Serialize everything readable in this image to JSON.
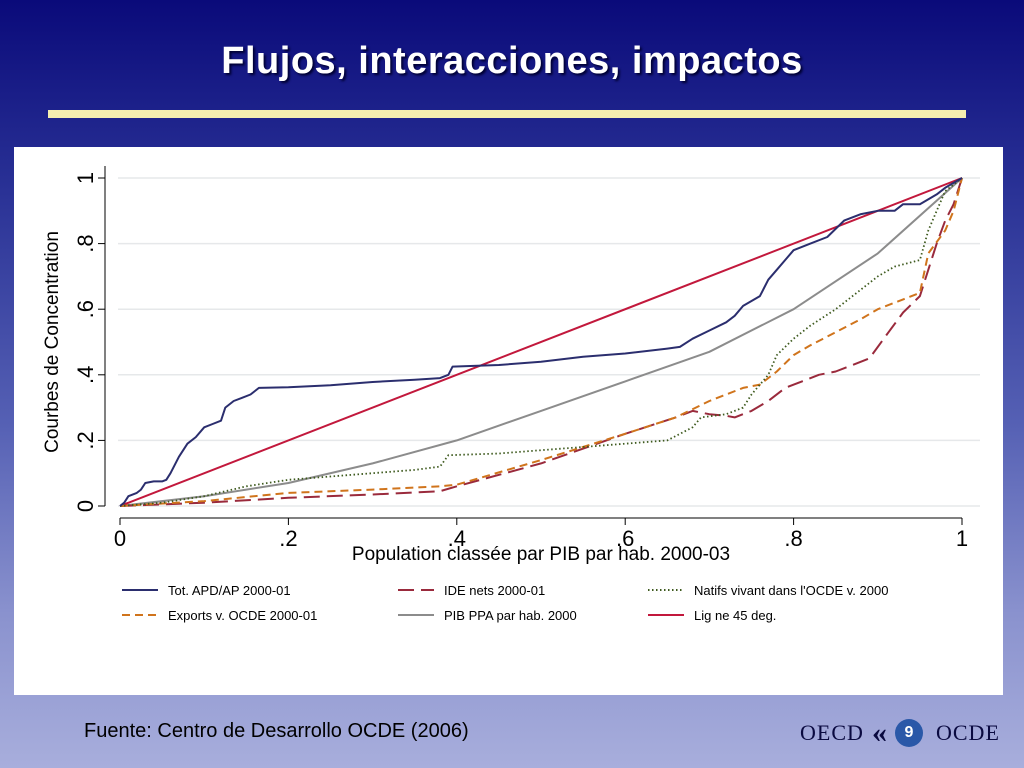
{
  "slide": {
    "title": "Flujos, interacciones, impactos",
    "footer": "Fuente: Centro de Desarrollo OCDE (2006)",
    "logo_left": "OECD",
    "logo_right": "OCDE",
    "page_number": "9"
  },
  "chart_data": {
    "type": "line",
    "title": "",
    "xlabel": "Population classée par PIB par hab. 2000-03",
    "ylabel": "Courbes de Concentration",
    "xlim": [
      0,
      1
    ],
    "ylim": [
      0,
      1
    ],
    "x_ticks": [
      0,
      0.2,
      0.4,
      0.6,
      0.8,
      1
    ],
    "x_tick_labels": [
      "0",
      ".2",
      ".4",
      ".6",
      ".8",
      "1"
    ],
    "y_ticks": [
      0,
      0.2,
      0.4,
      0.6,
      0.8,
      1
    ],
    "y_tick_labels": [
      "0",
      ".2",
      ".4",
      ".6",
      ".8",
      "1"
    ],
    "grid": true,
    "legend_position": "bottom",
    "series": [
      {
        "name": "Tot. APD/AP 2000-01",
        "color": "#2b2e6e",
        "style": "solid",
        "points": [
          [
            0,
            0
          ],
          [
            0.005,
            0.01
          ],
          [
            0.01,
            0.03
          ],
          [
            0.02,
            0.04
          ],
          [
            0.025,
            0.05
          ],
          [
            0.03,
            0.07
          ],
          [
            0.04,
            0.075
          ],
          [
            0.05,
            0.075
          ],
          [
            0.055,
            0.08
          ],
          [
            0.06,
            0.1
          ],
          [
            0.07,
            0.15
          ],
          [
            0.08,
            0.19
          ],
          [
            0.09,
            0.21
          ],
          [
            0.1,
            0.24
          ],
          [
            0.11,
            0.25
          ],
          [
            0.12,
            0.26
          ],
          [
            0.125,
            0.3
          ],
          [
            0.135,
            0.32
          ],
          [
            0.145,
            0.33
          ],
          [
            0.155,
            0.34
          ],
          [
            0.165,
            0.36
          ],
          [
            0.2,
            0.362
          ],
          [
            0.25,
            0.368
          ],
          [
            0.3,
            0.378
          ],
          [
            0.35,
            0.385
          ],
          [
            0.38,
            0.39
          ],
          [
            0.39,
            0.4
          ],
          [
            0.395,
            0.425
          ],
          [
            0.45,
            0.43
          ],
          [
            0.5,
            0.44
          ],
          [
            0.55,
            0.455
          ],
          [
            0.6,
            0.465
          ],
          [
            0.65,
            0.48
          ],
          [
            0.665,
            0.485
          ],
          [
            0.68,
            0.51
          ],
          [
            0.7,
            0.535
          ],
          [
            0.72,
            0.56
          ],
          [
            0.73,
            0.58
          ],
          [
            0.74,
            0.61
          ],
          [
            0.76,
            0.64
          ],
          [
            0.77,
            0.69
          ],
          [
            0.78,
            0.72
          ],
          [
            0.79,
            0.75
          ],
          [
            0.8,
            0.78
          ],
          [
            0.82,
            0.8
          ],
          [
            0.84,
            0.82
          ],
          [
            0.86,
            0.87
          ],
          [
            0.88,
            0.89
          ],
          [
            0.9,
            0.9
          ],
          [
            0.92,
            0.9
          ],
          [
            0.93,
            0.92
          ],
          [
            0.95,
            0.92
          ],
          [
            0.97,
            0.95
          ],
          [
            0.98,
            0.97
          ],
          [
            1,
            1
          ]
        ]
      },
      {
        "name": "IDE nets 2000-01",
        "color": "#9a2a3c",
        "style": "longdash",
        "points": [
          [
            0,
            0
          ],
          [
            0.1,
            0.01
          ],
          [
            0.2,
            0.025
          ],
          [
            0.3,
            0.035
          ],
          [
            0.38,
            0.045
          ],
          [
            0.4,
            0.06
          ],
          [
            0.5,
            0.13
          ],
          [
            0.6,
            0.22
          ],
          [
            0.66,
            0.27
          ],
          [
            0.68,
            0.29
          ],
          [
            0.7,
            0.28
          ],
          [
            0.72,
            0.275
          ],
          [
            0.73,
            0.27
          ],
          [
            0.75,
            0.29
          ],
          [
            0.77,
            0.32
          ],
          [
            0.79,
            0.36
          ],
          [
            0.81,
            0.38
          ],
          [
            0.83,
            0.4
          ],
          [
            0.85,
            0.41
          ],
          [
            0.87,
            0.43
          ],
          [
            0.89,
            0.45
          ],
          [
            0.91,
            0.52
          ],
          [
            0.93,
            0.59
          ],
          [
            0.95,
            0.64
          ],
          [
            0.96,
            0.72
          ],
          [
            0.97,
            0.8
          ],
          [
            0.98,
            0.87
          ],
          [
            0.99,
            0.92
          ],
          [
            1,
            1
          ]
        ]
      },
      {
        "name": "Natifs vivant dans l'OCDE v. 2000",
        "color": "#3e5a1e",
        "style": "dotted",
        "points": [
          [
            0,
            0
          ],
          [
            0.05,
            0.01
          ],
          [
            0.1,
            0.03
          ],
          [
            0.15,
            0.06
          ],
          [
            0.2,
            0.08
          ],
          [
            0.25,
            0.09
          ],
          [
            0.3,
            0.1
          ],
          [
            0.35,
            0.11
          ],
          [
            0.38,
            0.12
          ],
          [
            0.39,
            0.155
          ],
          [
            0.45,
            0.16
          ],
          [
            0.5,
            0.17
          ],
          [
            0.55,
            0.18
          ],
          [
            0.6,
            0.19
          ],
          [
            0.65,
            0.2
          ],
          [
            0.68,
            0.24
          ],
          [
            0.69,
            0.27
          ],
          [
            0.72,
            0.28
          ],
          [
            0.74,
            0.3
          ],
          [
            0.75,
            0.34
          ],
          [
            0.77,
            0.4
          ],
          [
            0.78,
            0.46
          ],
          [
            0.8,
            0.51
          ],
          [
            0.82,
            0.55
          ],
          [
            0.85,
            0.6
          ],
          [
            0.88,
            0.66
          ],
          [
            0.9,
            0.7
          ],
          [
            0.92,
            0.73
          ],
          [
            0.95,
            0.75
          ],
          [
            0.96,
            0.84
          ],
          [
            0.97,
            0.9
          ],
          [
            0.98,
            0.96
          ],
          [
            0.99,
            0.98
          ],
          [
            1,
            1
          ]
        ]
      },
      {
        "name": "Exports v. OCDE 2000-01",
        "color": "#d0741c",
        "style": "dashed",
        "points": [
          [
            0,
            0
          ],
          [
            0.1,
            0.015
          ],
          [
            0.2,
            0.04
          ],
          [
            0.3,
            0.05
          ],
          [
            0.38,
            0.06
          ],
          [
            0.4,
            0.065
          ],
          [
            0.5,
            0.14
          ],
          [
            0.6,
            0.22
          ],
          [
            0.66,
            0.27
          ],
          [
            0.7,
            0.32
          ],
          [
            0.74,
            0.36
          ],
          [
            0.76,
            0.37
          ],
          [
            0.78,
            0.41
          ],
          [
            0.8,
            0.46
          ],
          [
            0.82,
            0.49
          ],
          [
            0.85,
            0.53
          ],
          [
            0.88,
            0.57
          ],
          [
            0.9,
            0.6
          ],
          [
            0.93,
            0.63
          ],
          [
            0.95,
            0.65
          ],
          [
            0.96,
            0.77
          ],
          [
            0.98,
            0.84
          ],
          [
            0.99,
            0.9
          ],
          [
            1,
            1
          ]
        ]
      },
      {
        "name": "PIB PPA par hab. 2000",
        "color": "#8c8c8c",
        "style": "solid",
        "points": [
          [
            0,
            0
          ],
          [
            0.1,
            0.03
          ],
          [
            0.2,
            0.07
          ],
          [
            0.3,
            0.13
          ],
          [
            0.4,
            0.2
          ],
          [
            0.5,
            0.29
          ],
          [
            0.6,
            0.38
          ],
          [
            0.7,
            0.47
          ],
          [
            0.8,
            0.6
          ],
          [
            0.9,
            0.77
          ],
          [
            1,
            1
          ]
        ]
      },
      {
        "name": "Lig ne 45 deg.",
        "color": "#c2183c",
        "style": "solid",
        "points": [
          [
            0,
            0
          ],
          [
            1,
            1
          ]
        ]
      }
    ]
  }
}
